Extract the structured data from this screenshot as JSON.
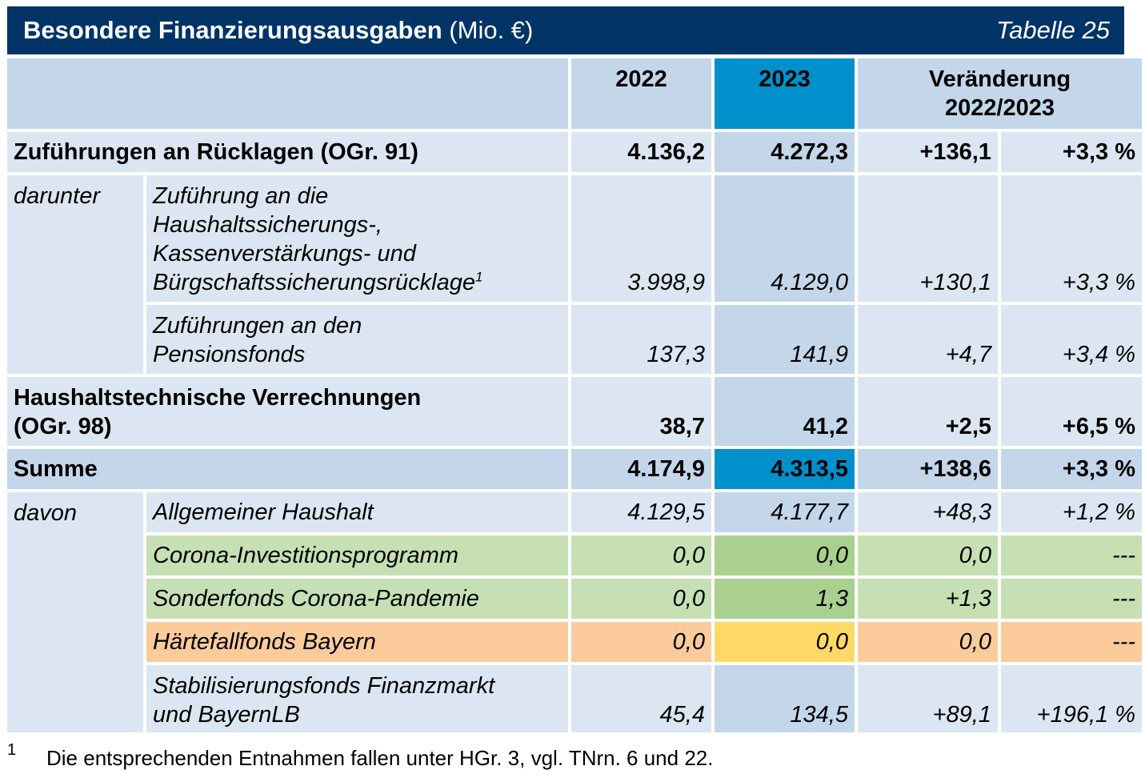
{
  "header": {
    "title_bold": "Besondere Finanzierungsausgaben",
    "title_unit": "(Mio. €)",
    "table_number": "Tabelle 25"
  },
  "columns": {
    "y2022": "2022",
    "y2023": "2023",
    "change_line1": "Veränderung",
    "change_line2": "2022/2023"
  },
  "rows": {
    "zufuehrungen": {
      "label": "Zuführungen an Rücklagen (OGr. 91)",
      "v2022": "4.136,2",
      "v2023": "4.272,3",
      "abs": "+136,1",
      "pct": "+3,3 %"
    },
    "darunter_label": "darunter",
    "haushaltssicherung": {
      "line1": "Zuführung an die",
      "line2": "Haushaltssicherungs-,",
      "line3": "Kassenverstärkungs- und",
      "line4": "Bürgschaftssicherungsrücklage",
      "footnote_ref": "1",
      "v2022": "3.998,9",
      "v2023": "4.129,0",
      "abs": "+130,1",
      "pct": "+3,3 %"
    },
    "pensionsfonds": {
      "line1": "Zuführungen an den",
      "line2": "Pensionsfonds",
      "v2022": "137,3",
      "v2023": "141,9",
      "abs": "+4,7",
      "pct": "+3,4 %"
    },
    "verrechnungen": {
      "line1": "Haushaltstechnische Verrechnungen",
      "line2": "(OGr. 98)",
      "v2022": "38,7",
      "v2023": "41,2",
      "abs": "+2,5",
      "pct": "+6,5 %"
    },
    "summe": {
      "label": "Summe",
      "v2022": "4.174,9",
      "v2023": "4.313,5",
      "abs": "+138,6",
      "pct": "+3,3 %"
    },
    "davon_label": "davon",
    "allgemein": {
      "label": "Allgemeiner Haushalt",
      "v2022": "4.129,5",
      "v2023": "4.177,7",
      "abs": "+48,3",
      "pct": "+1,2 %"
    },
    "corona_invest": {
      "label": "Corona-Investitionsprogramm",
      "v2022": "0,0",
      "v2023": "0,0",
      "abs": "0,0",
      "pct": "---"
    },
    "sonderfonds": {
      "label": "Sonderfonds Corona-Pandemie",
      "v2022": "0,0",
      "v2023": "1,3",
      "abs": "+1,3",
      "pct": "---"
    },
    "haertefall": {
      "label": "Härtefallfonds Bayern",
      "v2022": "0,0",
      "v2023": "0,0",
      "abs": "0,0",
      "pct": "---"
    },
    "stabilisierung": {
      "line1": "Stabilisierungsfonds Finanzmarkt",
      "line2": "und BayernLB",
      "v2022": "45,4",
      "v2023": "134,5",
      "abs": "+89,1",
      "pct": "+196,1 %"
    }
  },
  "footnote": {
    "mark": "1",
    "text": "Die entsprechenden Entnahmen fallen unter HGr. 3, vgl. TNrn. 6 und 22."
  },
  "colors": {
    "title_bar": "#003366",
    "cell_light": "#dce6f2",
    "cell_mid": "#c3d6ea",
    "highlight_blue": "#0091cd",
    "green_light": "#c6e0b4",
    "green_dark": "#a9d08e",
    "orange": "#fbcb9c",
    "yellow": "#ffd966"
  }
}
